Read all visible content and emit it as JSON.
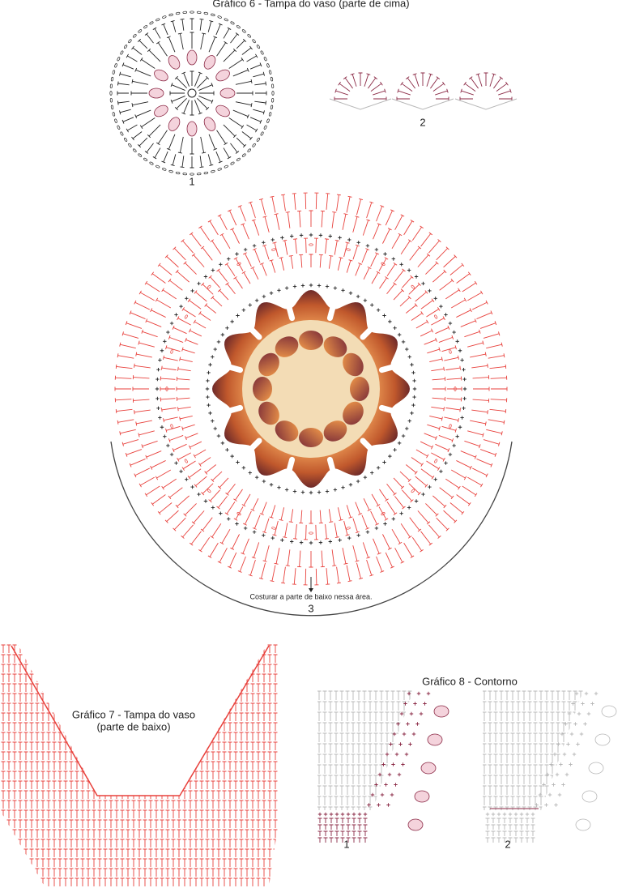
{
  "chart6": {
    "title": "Gráfico 6 - Tampa do vaso (parte de cima)",
    "labels": [
      "1",
      "2",
      "3"
    ],
    "note": "Costurar a parte de baixo nessa área."
  },
  "chart7": {
    "title": "Gráfico 7 - Tampa do vaso",
    "subtitle": "(parte de baixo)"
  },
  "chart8": {
    "title": "Gráfico 8 - Contorno",
    "labels": [
      "1",
      "2"
    ]
  }
}
